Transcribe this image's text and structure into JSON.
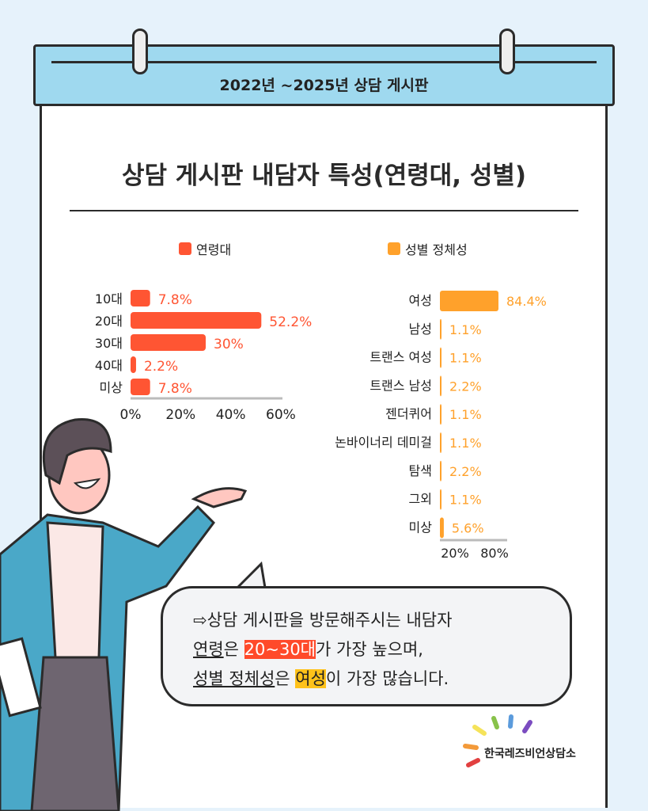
{
  "header": {
    "title": "2022년 ~2025년 상담 게시판"
  },
  "title": "상담 게시판 내담자 특성(연령대, 성별)",
  "colors": {
    "age": "#ff5533",
    "gender": "#ffa12b"
  },
  "chart_data": [
    {
      "type": "bar",
      "orientation": "horizontal",
      "legend": "연령대",
      "categories": [
        "10대",
        "20대",
        "30대",
        "40대",
        "미상"
      ],
      "values": [
        7.8,
        52.2,
        30,
        2.2,
        7.8
      ],
      "labels": [
        "7.8%",
        "52.2%",
        "30%",
        "2.2%",
        "7.8%"
      ],
      "xlim": [
        0,
        60
      ],
      "ticks": [
        "0%",
        "20%",
        "40%",
        "60%"
      ]
    },
    {
      "type": "bar",
      "orientation": "horizontal",
      "legend": "성별 정체성",
      "categories": [
        "여성",
        "남성",
        "트랜스 여성",
        "트랜스 남성",
        "젠더퀴어",
        "논바이너리 데미걸",
        "탐색",
        "그외",
        "미상"
      ],
      "values": [
        84.4,
        1.1,
        1.1,
        2.2,
        1.1,
        1.1,
        2.2,
        1.1,
        5.6
      ],
      "labels": [
        "84.4%",
        "1.1%",
        "1.1%",
        "2.2%",
        "1.1%",
        "1.1%",
        "2.2%",
        "1.1%",
        "5.6%"
      ],
      "ticks": [
        "20%",
        "80%"
      ]
    }
  ],
  "bubble": {
    "arrow": "⇨",
    "line1": "상담 게시판을 방문해주시는 내담자",
    "l2a": "연령",
    "l2b": "은 ",
    "l2c": "20~30대",
    "l2d": "가 가장 높으며,",
    "l3a": "성별 정체성",
    "l3b": "은 ",
    "l3c": "여성",
    "l3d": "이 가장 많습니다."
  },
  "logo": "한국레즈비언상담소"
}
